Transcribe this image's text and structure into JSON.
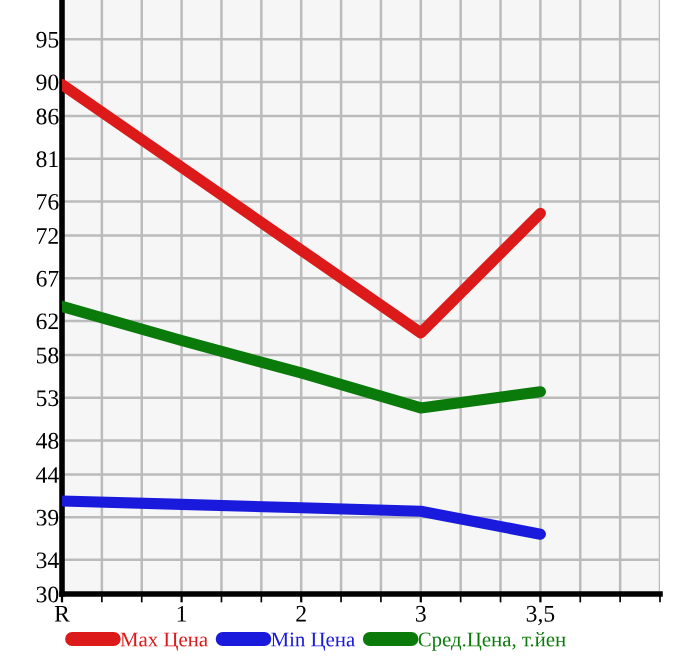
{
  "chart_data": {
    "type": "line",
    "categories": [
      "R",
      "1",
      "2",
      "3",
      "3,5"
    ],
    "series": [
      {
        "name": "Max Цена",
        "color": "#dd1a1a",
        "values": [
          89.7,
          80.0,
          70.3,
          60.6,
          74.6
        ]
      },
      {
        "name": "Min Цена",
        "color": "#1a1add",
        "values": [
          40.9,
          40.5,
          40.1,
          39.7,
          37.0
        ]
      },
      {
        "name": "Сред.Цена, т.йен",
        "color": "#0a7a0a",
        "values": [
          63.7,
          59.7,
          55.9,
          51.8,
          53.7
        ]
      }
    ],
    "ylim": [
      30,
      99.6
    ],
    "yticks": [
      30,
      34,
      39,
      44,
      48,
      53,
      58,
      62,
      67,
      72,
      76,
      81,
      86,
      90,
      95
    ],
    "grid": true,
    "legend": "bottom",
    "marker": "none",
    "line_style": "solid"
  }
}
